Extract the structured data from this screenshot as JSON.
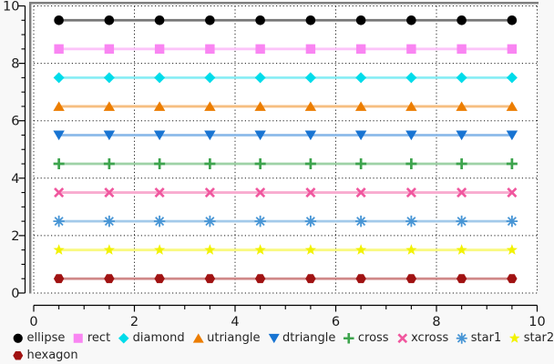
{
  "page": {
    "background": "#f8f8f8",
    "text_color": "#262626"
  },
  "plot": {
    "plot_bg": "#ffffff",
    "frame_color": "#7f7f7f",
    "grid_color": "#1f1f1f",
    "axis_color": "#000000",
    "tick_label_color": "#1a1a1a",
    "grid_style": "dotted",
    "x_ticks": [
      0,
      2,
      4,
      6,
      8,
      10
    ],
    "x_tick_labels": [
      "0",
      "2",
      "4",
      "6",
      "8",
      "10"
    ],
    "y_ticks": [
      0,
      2,
      4,
      6,
      8,
      10
    ],
    "y_tick_labels": [
      "0",
      "2",
      "4",
      "6",
      "8",
      "10"
    ],
    "minor_tick_step": 0.5
  },
  "chart_data": {
    "type": "line",
    "title": "",
    "xlabel": "",
    "ylabel": "",
    "xlim": [
      0,
      10
    ],
    "ylim": [
      0,
      10
    ],
    "grid": true,
    "legend_position": "bottom",
    "x": [
      0.5,
      1.5,
      2.5,
      3.5,
      4.5,
      5.5,
      6.5,
      7.5,
      8.5,
      9.5
    ],
    "series": [
      {
        "name": "ellipse",
        "marker": "ellipse",
        "marker_color": "#000000",
        "line_color": "#787878",
        "values": [
          9.5,
          9.5,
          9.5,
          9.5,
          9.5,
          9.5,
          9.5,
          9.5,
          9.5,
          9.5
        ]
      },
      {
        "name": "rect",
        "marker": "rect",
        "marker_color": "#f985f2",
        "line_color": "#fcc4f9",
        "values": [
          8.5,
          8.5,
          8.5,
          8.5,
          8.5,
          8.5,
          8.5,
          8.5,
          8.5,
          8.5
        ]
      },
      {
        "name": "diamond",
        "marker": "diamond",
        "marker_color": "#00dcea",
        "line_color": "#8aeef5",
        "values": [
          7.5,
          7.5,
          7.5,
          7.5,
          7.5,
          7.5,
          7.5,
          7.5,
          7.5,
          7.5
        ]
      },
      {
        "name": "utriangle",
        "marker": "utriangle",
        "marker_color": "#ec7d00",
        "line_color": "#f6be80",
        "values": [
          6.5,
          6.5,
          6.5,
          6.5,
          6.5,
          6.5,
          6.5,
          6.5,
          6.5,
          6.5
        ]
      },
      {
        "name": "dtriangle",
        "marker": "dtriangle",
        "marker_color": "#1874d2",
        "line_color": "#8cbae9",
        "values": [
          5.5,
          5.5,
          5.5,
          5.5,
          5.5,
          5.5,
          5.5,
          5.5,
          5.5,
          5.5
        ]
      },
      {
        "name": "cross",
        "marker": "cross",
        "marker_color": "#3da44d",
        "line_color": "#9ed2a6",
        "values": [
          4.5,
          4.5,
          4.5,
          4.5,
          4.5,
          4.5,
          4.5,
          4.5,
          4.5,
          4.5
        ]
      },
      {
        "name": "xcross",
        "marker": "xcross",
        "marker_color": "#f0579e",
        "line_color": "#f8abcf",
        "values": [
          3.5,
          3.5,
          3.5,
          3.5,
          3.5,
          3.5,
          3.5,
          3.5,
          3.5,
          3.5
        ]
      },
      {
        "name": "star1",
        "marker": "star1",
        "marker_color": "#4795d5",
        "line_color": "#a3caea",
        "values": [
          2.5,
          2.5,
          2.5,
          2.5,
          2.5,
          2.5,
          2.5,
          2.5,
          2.5,
          2.5
        ]
      },
      {
        "name": "star2",
        "marker": "star2",
        "marker_color": "#f2f200",
        "line_color": "#f9f980",
        "values": [
          1.5,
          1.5,
          1.5,
          1.5,
          1.5,
          1.5,
          1.5,
          1.5,
          1.5,
          1.5
        ]
      },
      {
        "name": "hexagon",
        "marker": "hexagon",
        "marker_color": "#a01212",
        "line_color": "#d08989",
        "values": [
          0.5,
          0.5,
          0.5,
          0.5,
          0.5,
          0.5,
          0.5,
          0.5,
          0.5,
          0.5
        ]
      }
    ],
    "legend_rows": [
      [
        0,
        1,
        2,
        3,
        4,
        5,
        6,
        7,
        8
      ],
      [
        9
      ]
    ]
  }
}
